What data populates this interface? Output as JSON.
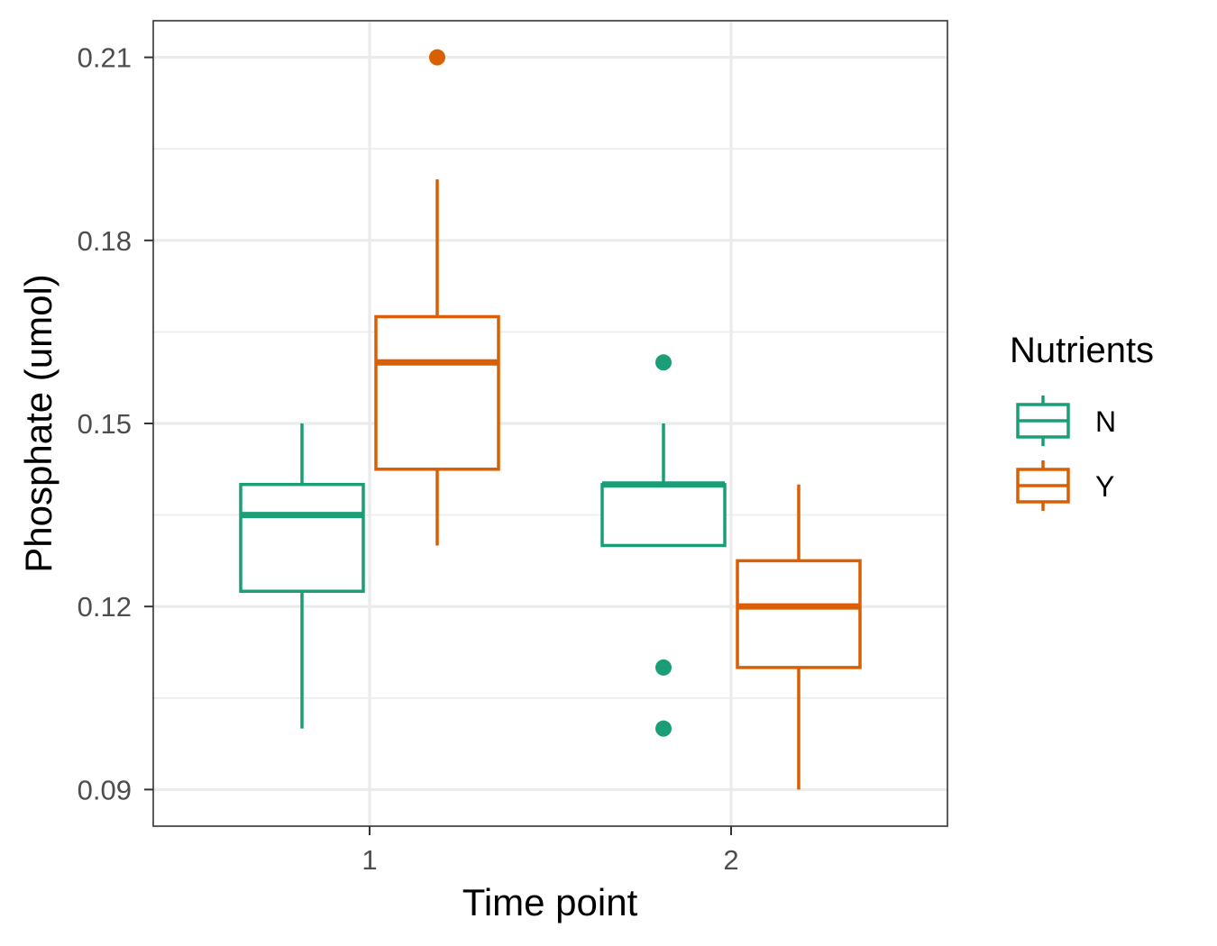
{
  "chart_data": {
    "type": "box",
    "xlabel": "Time point",
    "ylabel": "Phosphate (umol)",
    "categories": [
      "1",
      "2"
    ],
    "ylim": [
      0.084,
      0.216
    ],
    "yticks": [
      0.09,
      0.12,
      0.15,
      0.18,
      0.21
    ],
    "ytick_labels": [
      "0.09",
      "0.12",
      "0.15",
      "0.18",
      "0.21"
    ],
    "minor_gridlines": [
      0.105,
      0.135,
      0.165,
      0.195
    ],
    "grid": true,
    "legend": {
      "title": "Nutrients",
      "position": "right",
      "entries": [
        {
          "label": "N",
          "color": "#1b9e77"
        },
        {
          "label": "Y",
          "color": "#d95f02"
        }
      ]
    },
    "series": [
      {
        "name": "N",
        "color": "#1b9e77",
        "boxes": [
          {
            "category": "1",
            "whisker_low": 0.1,
            "q1": 0.1225,
            "median": 0.135,
            "q3": 0.14,
            "whisker_high": 0.15,
            "outliers": []
          },
          {
            "category": "2",
            "whisker_low": 0.13,
            "q1": 0.13,
            "median": 0.14,
            "q3": 0.14,
            "whisker_high": 0.15,
            "outliers": [
              0.16,
              0.11,
              0.1
            ]
          }
        ]
      },
      {
        "name": "Y",
        "color": "#d95f02",
        "boxes": [
          {
            "category": "1",
            "whisker_low": 0.13,
            "q1": 0.1425,
            "median": 0.16,
            "q3": 0.1675,
            "whisker_high": 0.19,
            "outliers": [
              0.21
            ]
          },
          {
            "category": "2",
            "whisker_low": 0.09,
            "q1": 0.11,
            "median": 0.12,
            "q3": 0.1275,
            "whisker_high": 0.14,
            "outliers": []
          }
        ]
      }
    ]
  }
}
